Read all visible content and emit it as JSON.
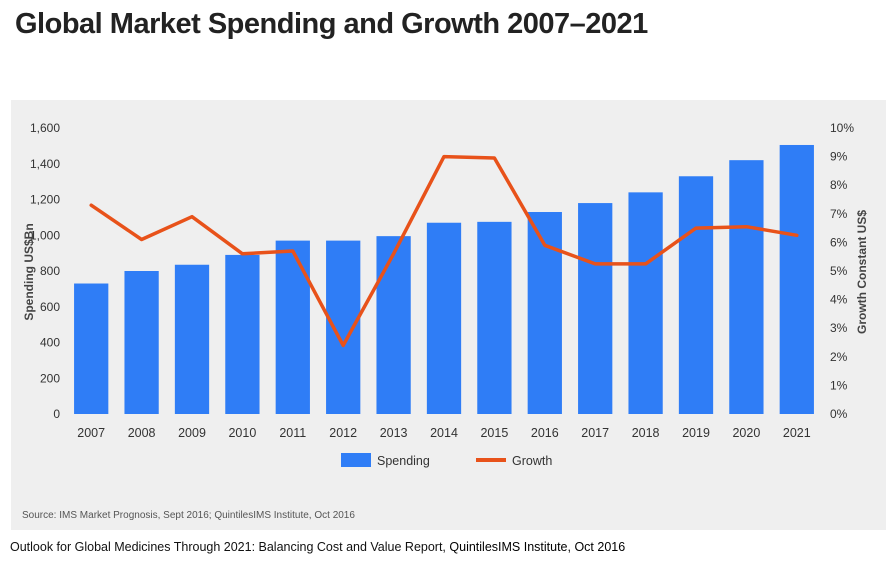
{
  "page": {
    "title": "Global Market Spending and Growth 2007–2021",
    "source": "Source: IMS Market Prognosis, Sept 2016; QuintilesIMS Institute, Oct 2016",
    "caption_main": "Outlook for Global Medicines Through 2021: Balancing Cost and Value Report,",
    "caption_source": " QuintilesIMS Institute, Oct 2016"
  },
  "chart_data": {
    "type": "bar",
    "title": "Global Market Spending and Growth 2007–2021",
    "categories": [
      "2007",
      "2008",
      "2009",
      "2010",
      "2011",
      "2012",
      "2013",
      "2014",
      "2015",
      "2016",
      "2017",
      "2018",
      "2019",
      "2020",
      "2021"
    ],
    "ylabel": "Spending US$Bn",
    "y2label": "Growth Constant US$",
    "ylim": [
      0,
      1600
    ],
    "y2lim": [
      0,
      10
    ],
    "yticks": [
      "0",
      "200",
      "400",
      "600",
      "800",
      "1,000",
      "1,200",
      "1,400",
      "1,600"
    ],
    "y2ticks": [
      "0%",
      "1%",
      "2%",
      "3%",
      "4%",
      "5%",
      "6%",
      "7%",
      "8%",
      "9%",
      "10%"
    ],
    "grid": false,
    "legend_position": "bottom",
    "series": [
      {
        "name": "Spending",
        "type": "bar",
        "axis": "left",
        "color": "#2f7df6",
        "values": [
          730,
          800,
          835,
          890,
          970,
          970,
          995,
          1070,
          1075,
          1130,
          1180,
          1240,
          1330,
          1420,
          1505
        ]
      },
      {
        "name": "Growth",
        "type": "line",
        "axis": "right",
        "unit": "%",
        "color": "#e8521a",
        "values": [
          7.3,
          6.1,
          6.9,
          5.6,
          5.7,
          2.4,
          5.6,
          9.0,
          8.95,
          5.9,
          5.25,
          5.25,
          6.5,
          6.55,
          6.25
        ]
      }
    ]
  }
}
